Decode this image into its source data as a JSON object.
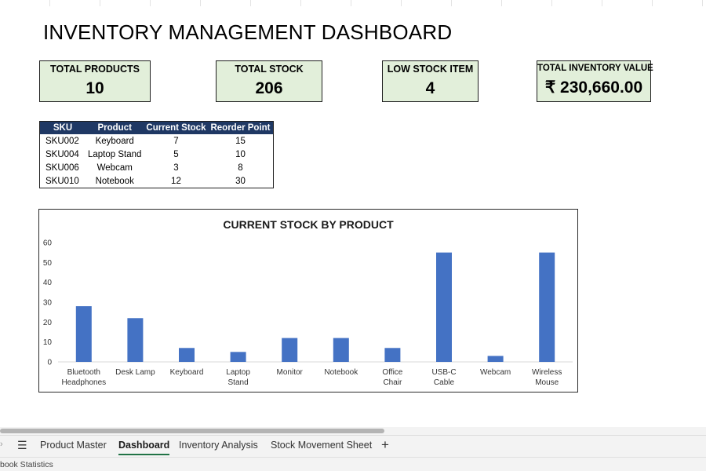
{
  "dashboard": {
    "title": "INVENTORY MANAGEMENT DASHBOARD"
  },
  "kpis": [
    {
      "label": "TOTAL PRODUCTS",
      "value": "10"
    },
    {
      "label": "TOTAL STOCK",
      "value": "206"
    },
    {
      "label": "LOW STOCK ITEM",
      "value": "4"
    },
    {
      "label": "TOTAL INVENTORY VALUE",
      "value": "₹ 230,660.00"
    }
  ],
  "low_stock_table": {
    "headers": [
      "SKU",
      "Product",
      "Current Stock",
      "Reorder Point"
    ],
    "rows": [
      [
        "SKU002",
        "Keyboard",
        "7",
        "15"
      ],
      [
        "SKU004",
        "Laptop Stand",
        "5",
        "10"
      ],
      [
        "SKU006",
        "Webcam",
        "3",
        "8"
      ],
      [
        "SKU010",
        "Notebook",
        "12",
        "30"
      ]
    ]
  },
  "chart_data": {
    "type": "bar",
    "title": "CURRENT STOCK BY PRODUCT",
    "categories": [
      "Bluetooth Headphones",
      "Desk Lamp",
      "Keyboard",
      "Laptop Stand",
      "Monitor",
      "Notebook",
      "Office Chair",
      "USB-C Cable",
      "Webcam",
      "Wireless Mouse"
    ],
    "values": [
      28,
      22,
      7,
      5,
      12,
      12,
      7,
      55,
      3,
      55
    ],
    "ylim": [
      0,
      60
    ],
    "yticks": [
      0,
      10,
      20,
      30,
      40,
      50,
      60
    ],
    "xlabel": "",
    "ylabel": "",
    "grid": false,
    "bar_color": "#4472c4"
  },
  "sheet_tabs": {
    "tabs": [
      {
        "label": "Product Master"
      },
      {
        "label": "Dashboard",
        "active": true
      },
      {
        "label": "Inventory Analysis"
      },
      {
        "label": "Stock Movement Sheet"
      }
    ],
    "menu_icon": "menu-icon",
    "add_icon": "plus-icon",
    "accent_color": "#217346"
  },
  "status_bar": {
    "text": "book Statistics"
  },
  "colors": {
    "kpi_fill": "#e2efda",
    "table_header": "#1f3864"
  }
}
